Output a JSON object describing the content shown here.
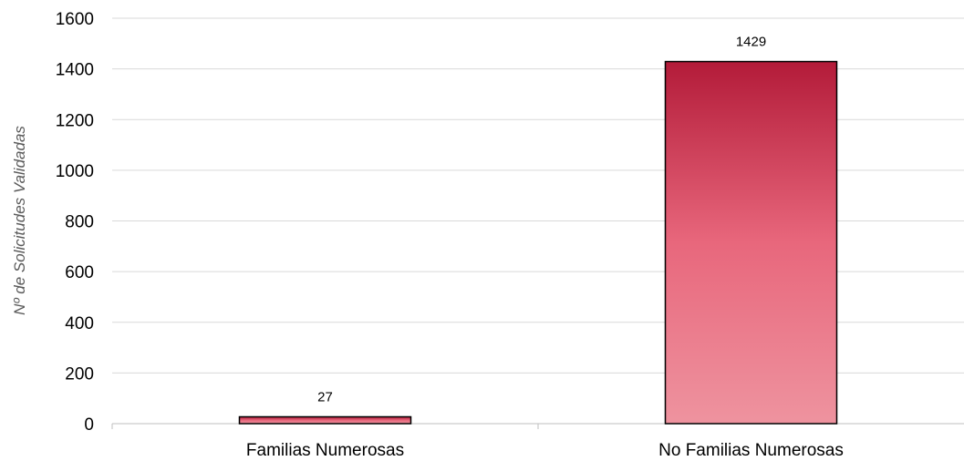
{
  "chart_data": {
    "type": "bar",
    "categories": [
      "Familias Numerosas",
      "No Familias Numerosas"
    ],
    "values": [
      27,
      1429
    ],
    "data_labels": [
      "27",
      "1429"
    ],
    "title": "",
    "xlabel": "",
    "ylabel": "Nº de Solicitudes Validadas",
    "ylim": [
      0,
      1600
    ],
    "yticks": [
      0,
      200,
      400,
      600,
      800,
      1000,
      1200,
      1400,
      1600
    ],
    "grid": true,
    "legend": "none",
    "colors": {
      "bar_top": "#b31b39",
      "bar_mid": "#e8677c",
      "bar_bottom": "#ee939f",
      "bar_outline": "#000000",
      "grid": "#d9d9d9",
      "axis": "#bfbfbf"
    }
  }
}
